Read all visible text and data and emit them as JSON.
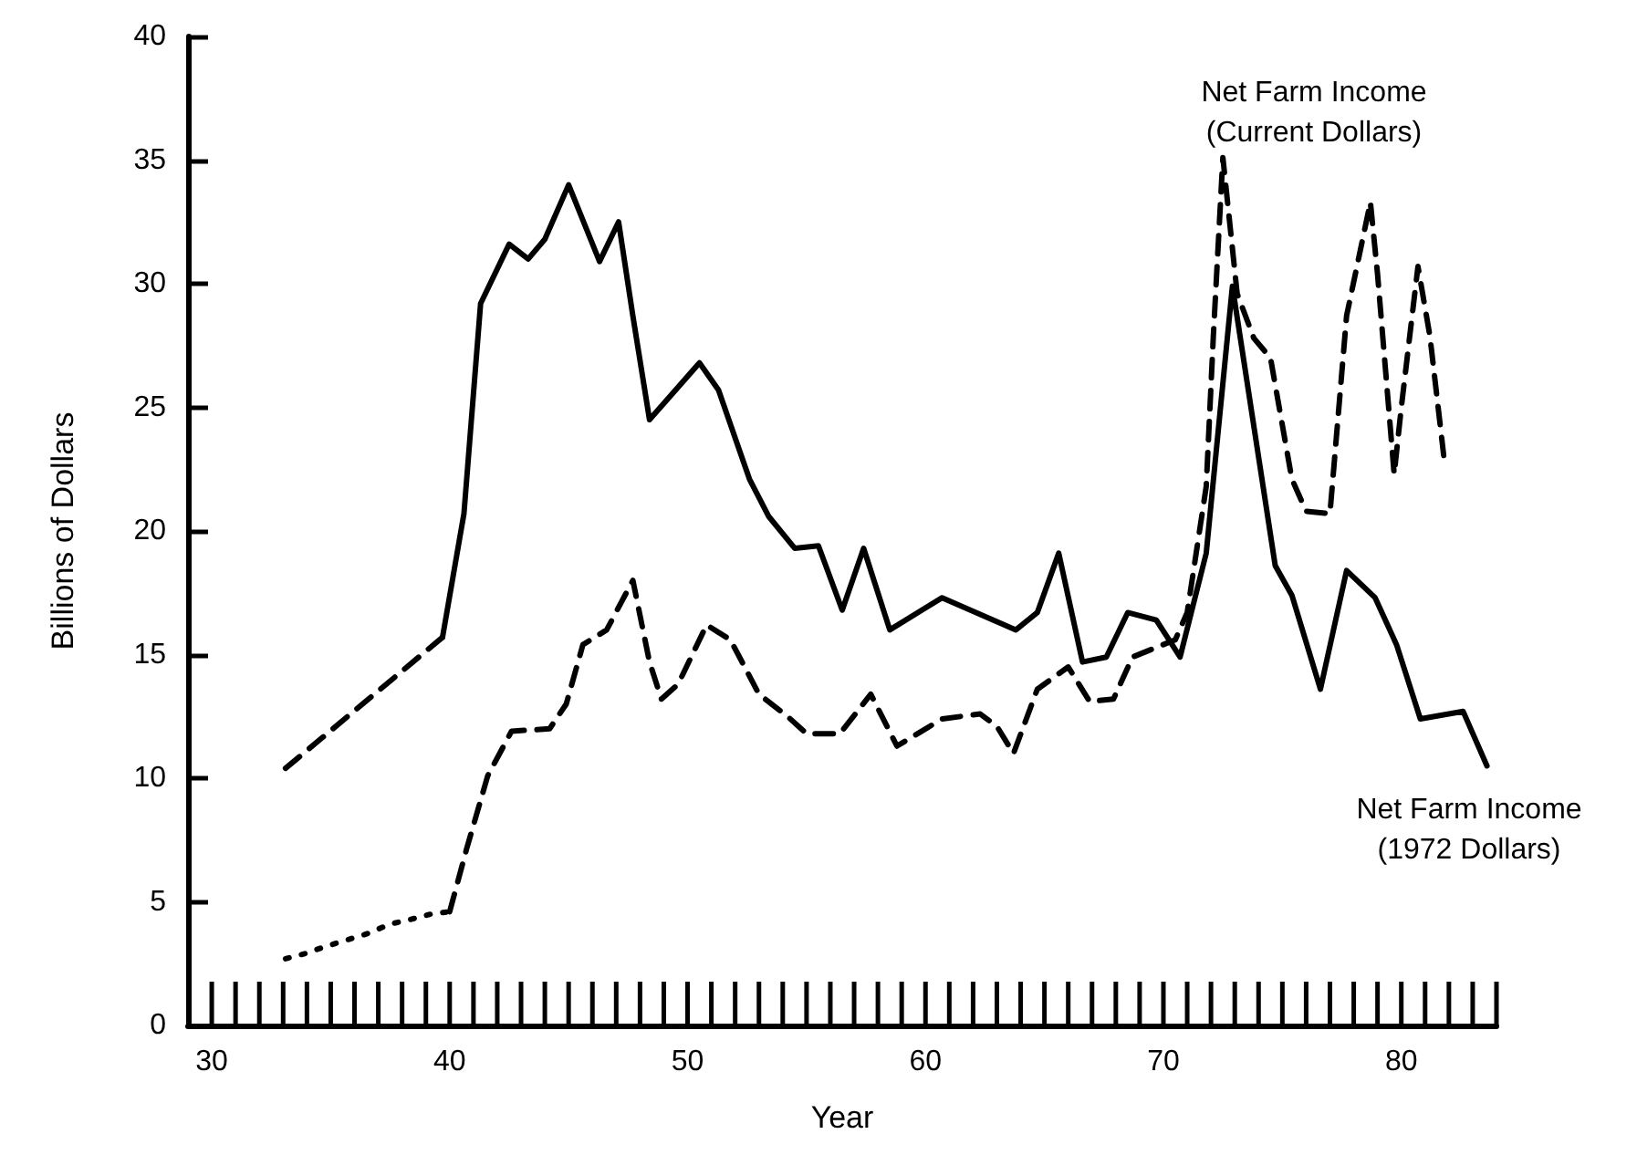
{
  "chart_data": {
    "type": "line",
    "xlabel": "Year",
    "ylabel": "Billions of Dollars",
    "xlim": [
      29,
      84
    ],
    "xticks": [
      30,
      40,
      50,
      60,
      70,
      80
    ],
    "ylim": [
      0,
      40
    ],
    "yticks": [
      0,
      5,
      10,
      15,
      20,
      25,
      30,
      35,
      40
    ],
    "grid": false,
    "legend": false,
    "marker": "none",
    "series": [
      {
        "color": "#000000",
        "line_style": "dashed",
        "x": [
          33.1,
          39.7
        ],
        "values": [
          10.4,
          15.7
        ]
      },
      {
        "color": "#000000",
        "line_style": "solid",
        "x": [
          39.7,
          40.6,
          41.3,
          42.5,
          43.3,
          44,
          45,
          46.3,
          47.1,
          47.7,
          48.4,
          50.5,
          51.3,
          52.6,
          53.4,
          54.5,
          55.5,
          56.5,
          57.4,
          58.5,
          60.7,
          63.8,
          64.7,
          65.6,
          66.6,
          67.6,
          68.5,
          69.7,
          70.7,
          71.8,
          72.9,
          74.7,
          75.4,
          76.6,
          77.7,
          78.9,
          79.8,
          80.8,
          82.6,
          83.6
        ],
        "values": [
          15.7,
          20.7,
          29.2,
          31.6,
          31,
          31.8,
          34,
          30.9,
          32.5,
          28.7,
          24.5,
          26.8,
          25.7,
          22.1,
          20.6,
          19.3,
          19.4,
          16.8,
          19.3,
          16,
          17.3,
          16,
          16.7,
          19.1,
          14.7,
          14.9,
          16.7,
          16.4,
          14.9,
          19.1,
          29.9,
          18.6,
          17.4,
          13.6,
          18.4,
          17.3,
          15.4,
          12.4,
          12.7,
          10.5
        ]
      },
      {
        "color": "#000000",
        "line_style": "dotted",
        "x": [
          33.1,
          33.9,
          34.8,
          36.5,
          37.5,
          38.4,
          39.2,
          40
        ],
        "values": [
          2.7,
          2.9,
          3.2,
          3.7,
          4.1,
          4.3,
          4.5,
          4.6
        ]
      },
      {
        "color": "#000000",
        "line_style": "dashed",
        "x": [
          40,
          40.7,
          41.6,
          42.6,
          44.2,
          44.9,
          45.6,
          46.6,
          47.7,
          48.4,
          48.9,
          49.6,
          50.8,
          51.8,
          53,
          54.2,
          55,
          56.4,
          57.7,
          58.8,
          60.7,
          62.3,
          63,
          63.7,
          64.7,
          66,
          66.9,
          67.9,
          68.7,
          70.5,
          71,
          71.8,
          72.1,
          72.5,
          73.1,
          73.8,
          74.5,
          75.4,
          76,
          77,
          77.7,
          78.7,
          79,
          79.7,
          80,
          80.7,
          81.2,
          81.8
        ],
        "values": [
          4.6,
          7.1,
          10.1,
          11.9,
          12,
          13,
          15.4,
          16,
          18,
          14.7,
          13.2,
          13.8,
          16.2,
          15.6,
          13.4,
          12.5,
          11.8,
          11.8,
          13.4,
          11.3,
          12.4,
          12.6,
          12.1,
          11,
          13.6,
          14.5,
          13.1,
          13.2,
          14.9,
          15.6,
          16.7,
          21.8,
          27.9,
          35.1,
          29.6,
          27.8,
          27,
          22.1,
          20.8,
          20.7,
          28.7,
          33.3,
          30.4,
          22.3,
          25,
          30.7,
          27.9,
          22.9
        ]
      }
    ],
    "annotations": [
      "Net Farm Income\n(Current Dollars)",
      "Net Farm Income\n(1972 Dollars)"
    ]
  }
}
